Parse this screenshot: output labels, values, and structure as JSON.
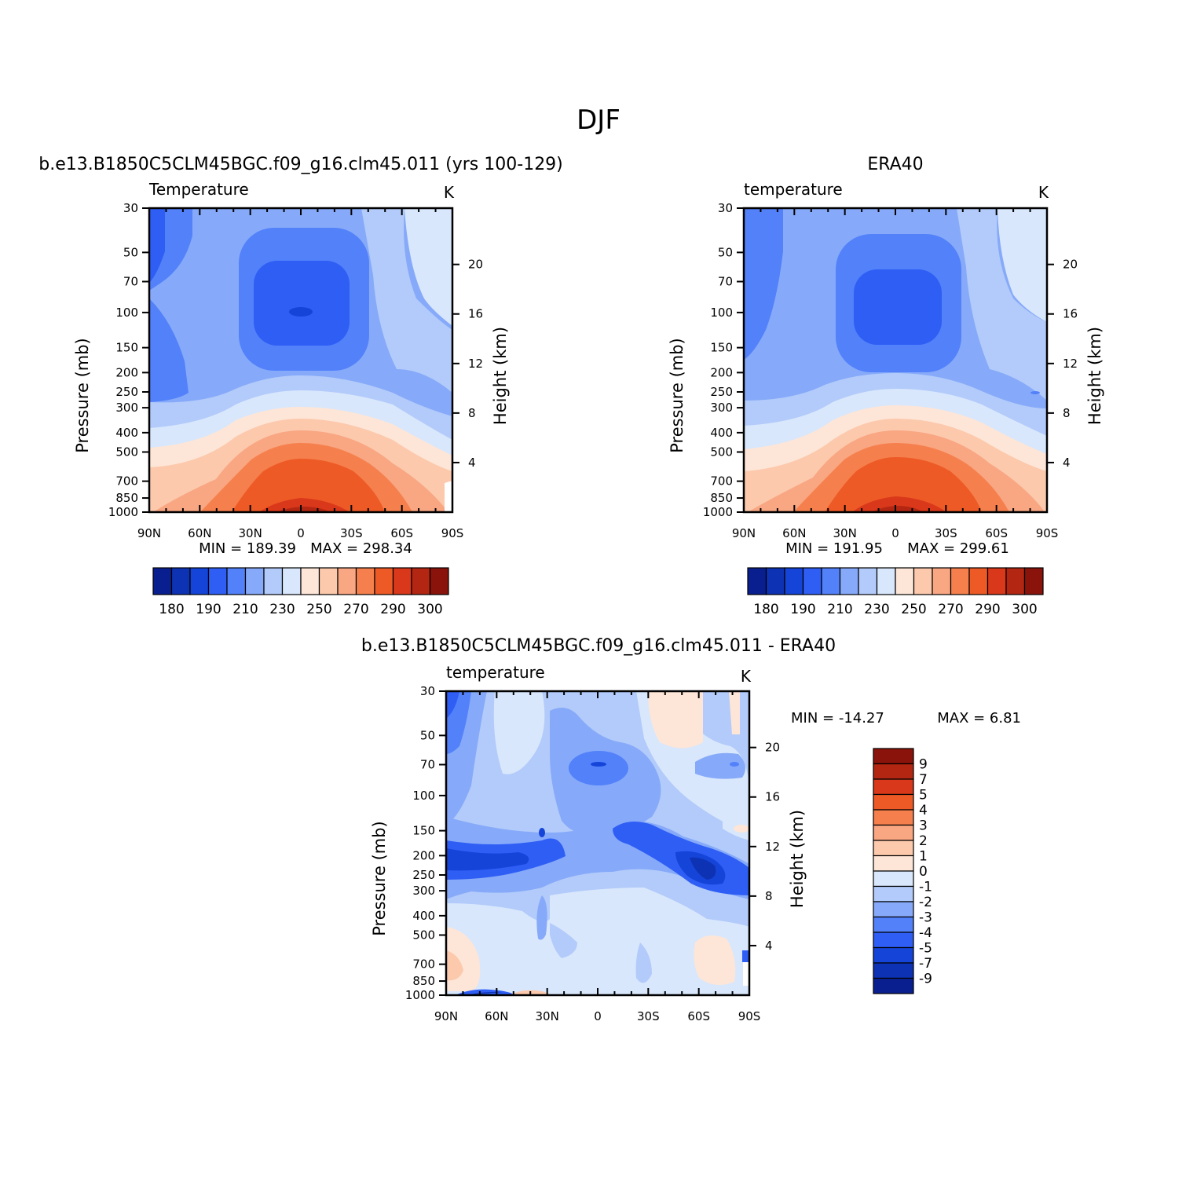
{
  "chart_data": {
    "type": "heatmap",
    "title": "DJF",
    "panels": [
      {
        "id": "model",
        "subtitle": "b.e13.B1850C5CLM45BGC.f09_g16.clm45.011 (yrs 100-129)",
        "variable": "Temperature",
        "units": "K",
        "xlabel": "",
        "ylabel": "Pressure (mb)",
        "ylabel_right": "Height (km)",
        "x_ticks": [
          "90N",
          "60N",
          "30N",
          "0",
          "30S",
          "60S",
          "90S"
        ],
        "y_ticks": [
          "30",
          "50",
          "70",
          "100",
          "150",
          "200",
          "250",
          "300",
          "400",
          "500",
          "700",
          "850",
          "1000"
        ],
        "y_ticks_right": [
          "20",
          "16",
          "12",
          "8",
          "4"
        ],
        "min_label": "MIN = 189.39",
        "max_label": "MAX = 298.34",
        "min": 189.39,
        "max": 298.34
      },
      {
        "id": "obs",
        "subtitle": "ERA40",
        "variable": "temperature",
        "units": "K",
        "xlabel": "",
        "ylabel": "Pressure (mb)",
        "ylabel_right": "Height (km)",
        "x_ticks": [
          "90N",
          "60N",
          "30N",
          "0",
          "30S",
          "60S",
          "90S"
        ],
        "y_ticks": [
          "30",
          "50",
          "70",
          "100",
          "150",
          "200",
          "250",
          "300",
          "400",
          "500",
          "700",
          "850",
          "1000"
        ],
        "y_ticks_right": [
          "20",
          "16",
          "12",
          "8",
          "4"
        ],
        "min_label": "MIN = 191.95",
        "max_label": "MAX = 299.61",
        "min": 191.95,
        "max": 299.61
      },
      {
        "id": "diff",
        "subtitle": "b.e13.B1850C5CLM45BGC.f09_g16.clm45.011 - ERA40",
        "variable": "temperature",
        "units": "K",
        "xlabel": "",
        "ylabel": "Pressure (mb)",
        "ylabel_right": "Height (km)",
        "x_ticks": [
          "90N",
          "60N",
          "30N",
          "0",
          "30S",
          "60S",
          "90S"
        ],
        "y_ticks": [
          "30",
          "50",
          "70",
          "100",
          "150",
          "200",
          "250",
          "300",
          "400",
          "500",
          "700",
          "850",
          "1000"
        ],
        "y_ticks_right": [
          "20",
          "16",
          "12",
          "8",
          "4"
        ],
        "min_label": "MIN = -14.27",
        "max_label": "MAX = 6.81",
        "min": -14.27,
        "max": 6.81
      }
    ],
    "colorbar_abs": {
      "labels": [
        "180",
        "190",
        "210",
        "230",
        "250",
        "270",
        "290",
        "300"
      ],
      "colors": [
        "#0a1f8f",
        "#0d32b3",
        "#1544d9",
        "#2f5ef5",
        "#5281fa",
        "#86aaf9",
        "#b3cbfa",
        "#d8e7fc",
        "#fde6d7",
        "#fcc9ad",
        "#f9a682",
        "#f5804d",
        "#ee5a26",
        "#d9381a",
        "#b32712",
        "#8a130b"
      ]
    },
    "colorbar_diff": {
      "labels": [
        "9",
        "7",
        "5",
        "4",
        "3",
        "2",
        "1",
        "0",
        "-1",
        "-2",
        "-3",
        "-4",
        "-5",
        "-7",
        "-9"
      ],
      "colors": [
        "#8a130b",
        "#b32712",
        "#d9381a",
        "#ee5a26",
        "#f5804d",
        "#f9a682",
        "#fcc9ad",
        "#fde6d7",
        "#d8e7fc",
        "#b3cbfa",
        "#86aaf9",
        "#5281fa",
        "#2f5ef5",
        "#1544d9",
        "#0d32b3",
        "#0a1f8f"
      ]
    }
  }
}
